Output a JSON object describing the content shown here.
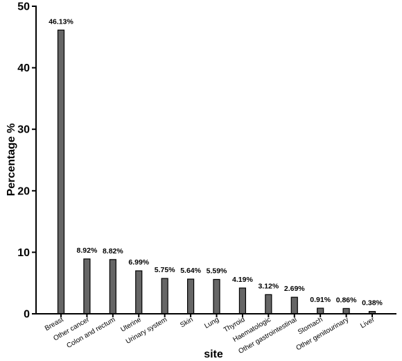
{
  "chart_data": {
    "type": "bar",
    "title": "",
    "xlabel": "site",
    "ylabel": "Percentage %",
    "ylim": [
      0,
      50
    ],
    "yticks": [
      0,
      10,
      20,
      30,
      40,
      50
    ],
    "grid": false,
    "legend": "none",
    "bar_color": "#666666",
    "categories": [
      "Breast",
      "Other cancer",
      "Colon and rectum",
      "Uterine",
      "Urinary system",
      "Skin",
      "Lung",
      "Thyroid",
      "Haematologic",
      "Other gastrointestinal",
      "Stomach",
      "Other genitourinary",
      "Liver"
    ],
    "values": [
      46.13,
      8.92,
      8.82,
      6.99,
      5.75,
      5.64,
      5.59,
      4.19,
      3.12,
      2.69,
      0.91,
      0.86,
      0.38
    ],
    "data_labels": [
      "46.13%",
      "8.92%",
      "8.82%",
      "6.99%",
      "5.75%",
      "5.64%",
      "5.59%",
      "4.19%",
      "3.12%",
      "2.69%",
      "0.91%",
      "0.86%",
      "0.38%"
    ]
  }
}
